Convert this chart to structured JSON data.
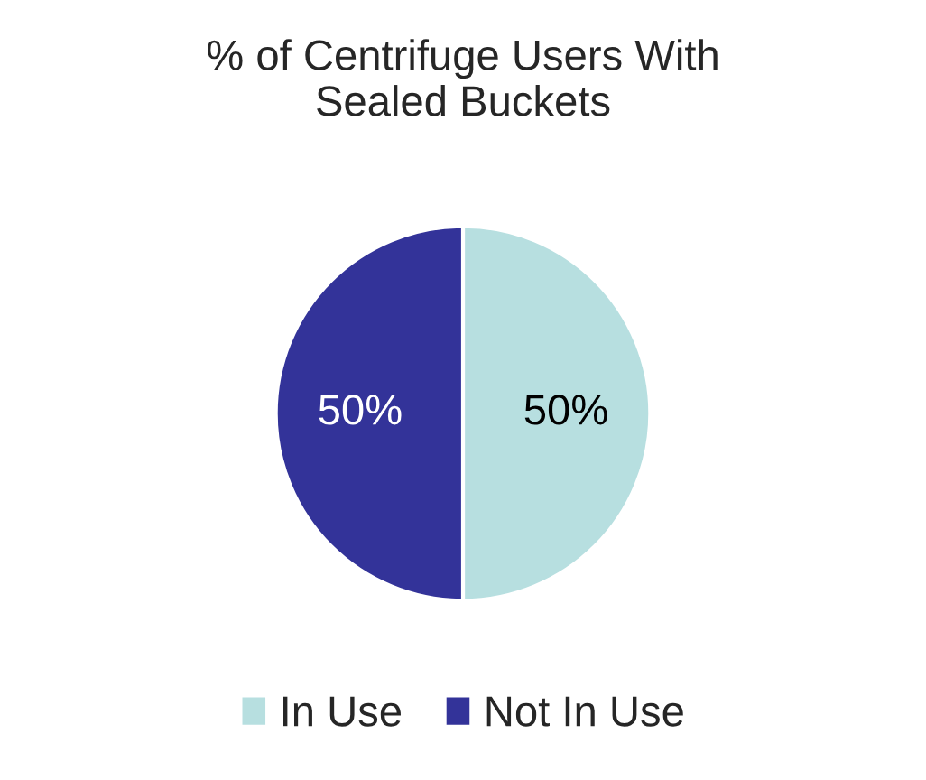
{
  "chart_data": {
    "type": "pie",
    "title": "% of Centrifuge Users With\nSealed Buckets",
    "categories": [
      "In Use",
      "Not In Use"
    ],
    "values": [
      50,
      50
    ],
    "colors": [
      "#b7dfe0",
      "#333399"
    ],
    "value_labels": [
      "50%",
      "50%"
    ],
    "legend": "bottom"
  }
}
